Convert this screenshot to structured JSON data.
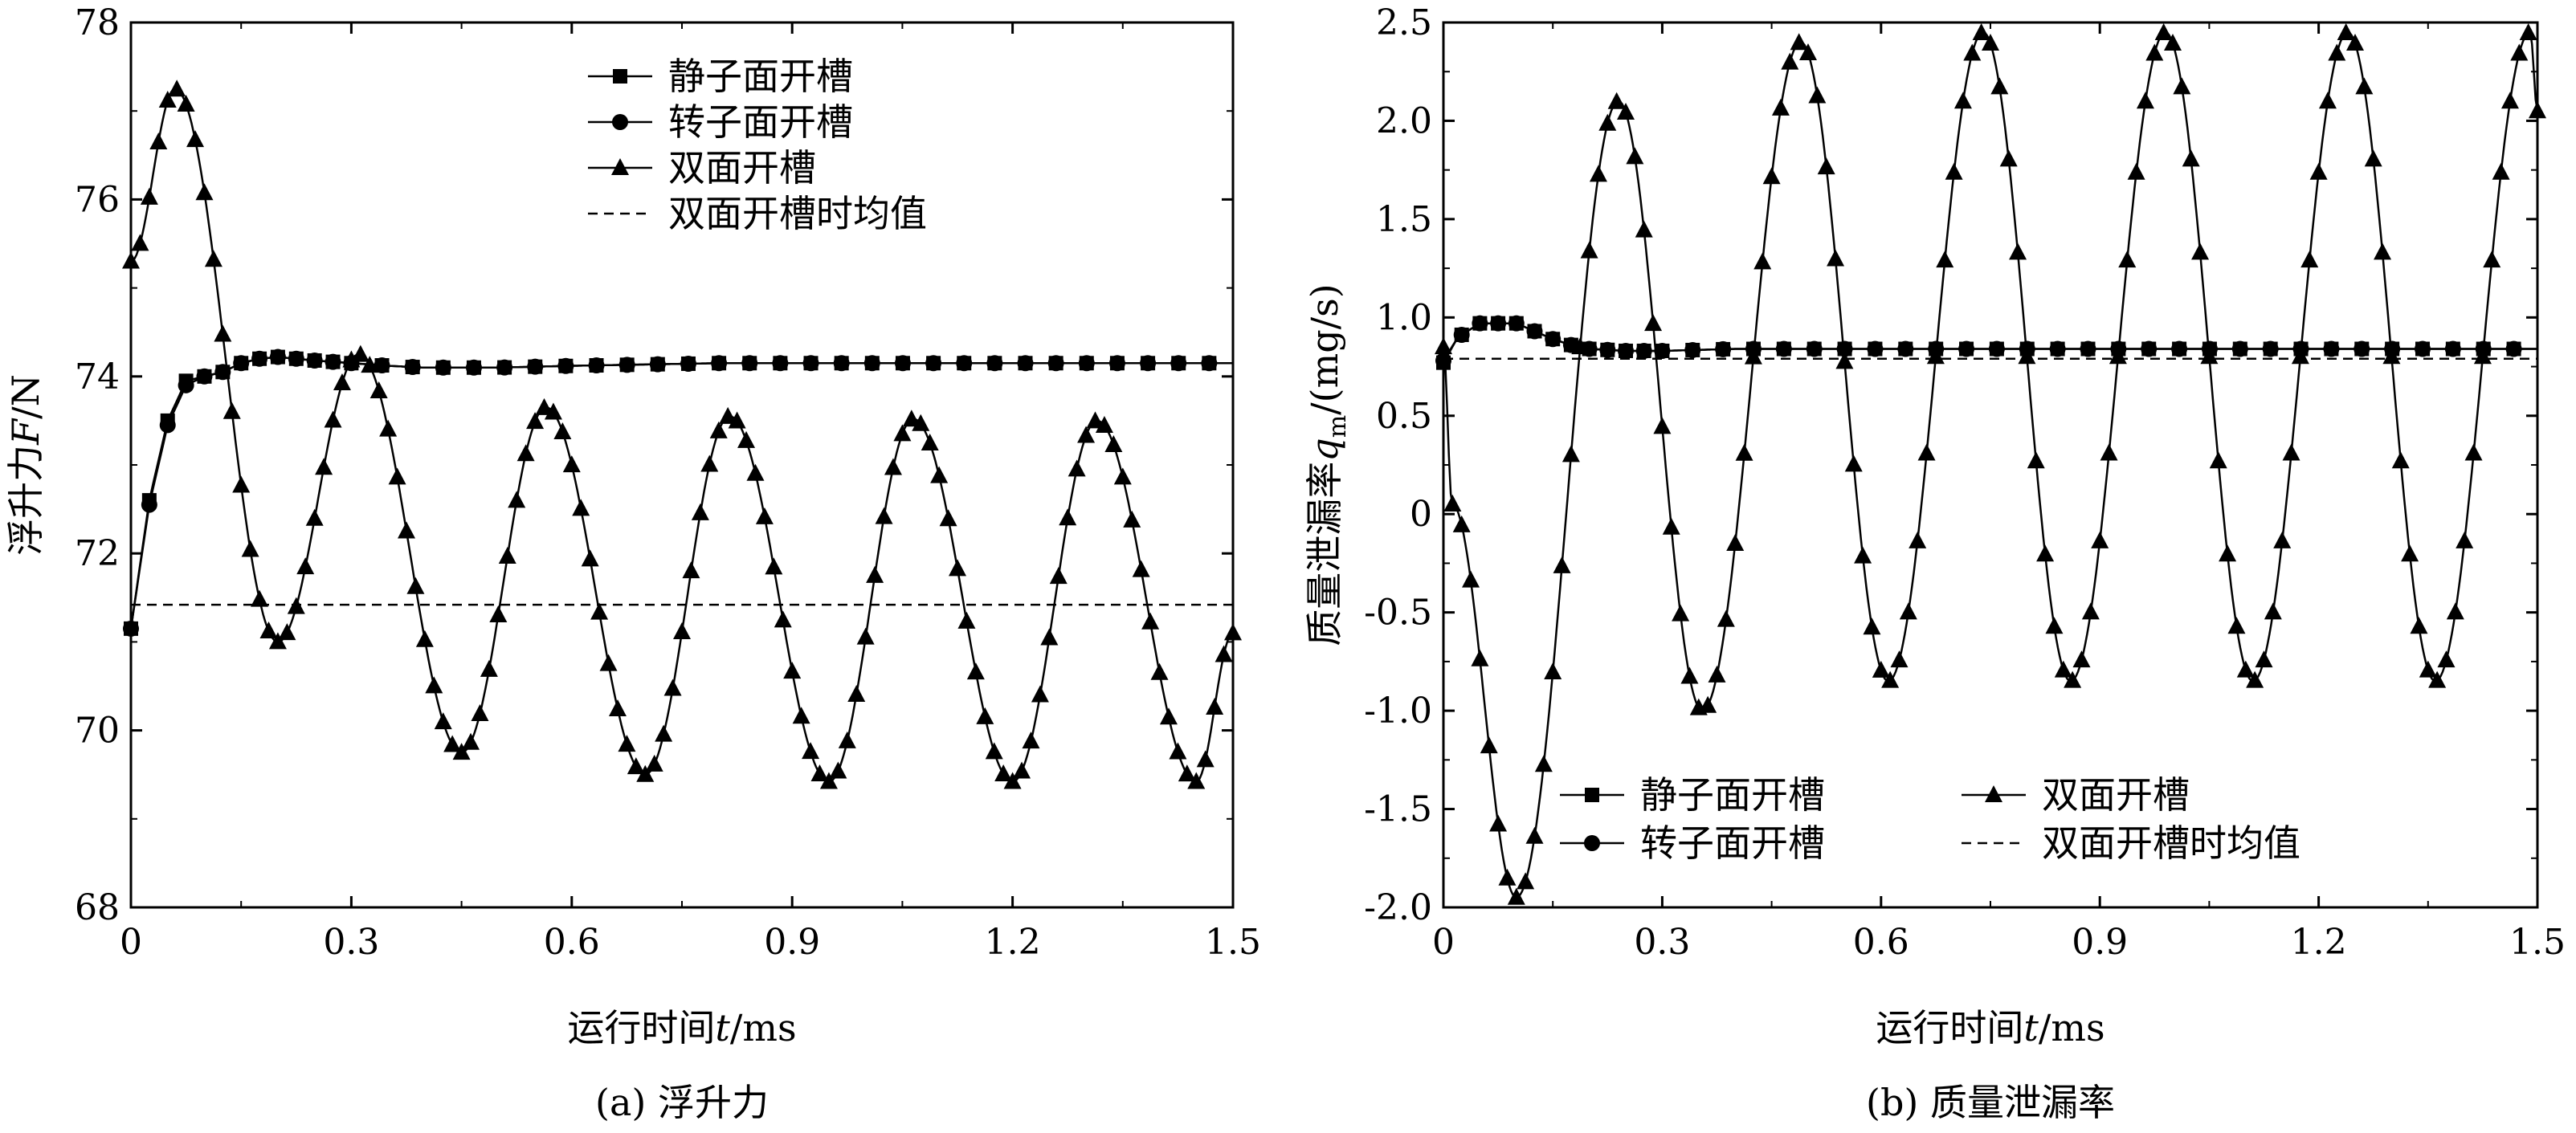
{
  "chart_data": [
    {
      "type": "line",
      "caption": "(a) 浮升力",
      "xlabel_prefix": "运行时间",
      "xlabel_var": "t",
      "xlabel_unit": "/ms",
      "ylabel_prefix": "浮升力",
      "ylabel_var": "F",
      "ylabel_unit": "/N",
      "xlim": [
        0,
        1.5
      ],
      "ylim": [
        68,
        78
      ],
      "xticks": [
        "0",
        "0.3",
        "0.6",
        "0.9",
        "1.2",
        "1.5"
      ],
      "yticks": [
        "68",
        "70",
        "72",
        "74",
        "76",
        "78"
      ],
      "legend_position": "top-right",
      "series": [
        {
          "name": "静子面开槽",
          "marker": "square",
          "x": [
            0,
            0.025,
            0.05,
            0.075,
            0.1,
            0.125,
            0.15,
            0.175,
            0.2,
            0.225,
            0.25,
            0.3,
            0.35,
            0.4,
            0.5,
            0.6,
            0.8,
            1.0,
            1.2,
            1.5
          ],
          "y": [
            71.15,
            72.6,
            73.5,
            73.95,
            74.0,
            74.05,
            74.15,
            74.2,
            74.22,
            74.2,
            74.18,
            74.15,
            74.12,
            74.1,
            74.1,
            74.12,
            74.15,
            74.15,
            74.15,
            74.15
          ]
        },
        {
          "name": "转子面开槽",
          "marker": "circle",
          "x": [
            0,
            0.025,
            0.05,
            0.075,
            0.1,
            0.125,
            0.15,
            0.175,
            0.2,
            0.225,
            0.25,
            0.3,
            0.35,
            0.4,
            0.5,
            0.6,
            0.8,
            1.0,
            1.2,
            1.5
          ],
          "y": [
            71.15,
            72.55,
            73.45,
            73.9,
            74.0,
            74.05,
            74.15,
            74.2,
            74.22,
            74.2,
            74.18,
            74.15,
            74.12,
            74.1,
            74.1,
            74.12,
            74.15,
            74.15,
            74.15,
            74.15
          ]
        },
        {
          "name": "双面开槽",
          "marker": "triangle",
          "x": [
            0,
            0.06,
            0.2,
            0.31,
            0.45,
            0.565,
            0.7,
            0.815,
            0.95,
            1.065,
            1.2,
            1.315,
            1.45,
            1.5
          ],
          "y": [
            75.3,
            77.25,
            71.0,
            74.25,
            69.75,
            73.65,
            69.5,
            73.55,
            69.42,
            73.52,
            69.42,
            73.5,
            69.42,
            71.1
          ]
        },
        {
          "name": "双面开槽时均值",
          "marker": "none",
          "dashed": true,
          "x": [
            0,
            1.5
          ],
          "y": [
            71.42,
            71.42
          ]
        }
      ]
    },
    {
      "type": "line",
      "caption": "(b) 质量泄漏率",
      "xlabel_prefix": "运行时间",
      "xlabel_var": "t",
      "xlabel_unit": "/ms",
      "ylabel_prefix": "质量泄漏率",
      "ylabel_var": "q",
      "ylabel_sub": "m",
      "ylabel_unit": "/(mg/s)",
      "xlim": [
        0,
        1.5
      ],
      "ylim": [
        -2.0,
        2.5
      ],
      "xticks": [
        "0",
        "0.3",
        "0.6",
        "0.9",
        "1.2",
        "1.5"
      ],
      "yticks": [
        "-2.0",
        "-1.5",
        "-1.0",
        "-0.5",
        "0",
        "0.5",
        "1.0",
        "1.5",
        "2.0",
        "2.5"
      ],
      "legend_position": "bottom-right",
      "series": [
        {
          "name": "静子面开槽",
          "marker": "square",
          "x": [
            0,
            0.02,
            0.05,
            0.075,
            0.1,
            0.125,
            0.15,
            0.175,
            0.2,
            0.25,
            0.3,
            0.4,
            0.6,
            0.8,
            1.0,
            1.2,
            1.5
          ],
          "y": [
            0.77,
            0.9,
            0.97,
            0.97,
            0.97,
            0.93,
            0.89,
            0.86,
            0.84,
            0.83,
            0.83,
            0.84,
            0.84,
            0.84,
            0.84,
            0.84,
            0.84
          ]
        },
        {
          "name": "转子面开槽",
          "marker": "circle",
          "x": [
            0,
            0.02,
            0.05,
            0.075,
            0.1,
            0.125,
            0.15,
            0.175,
            0.2,
            0.25,
            0.3,
            0.4,
            0.6,
            0.8,
            1.0,
            1.2,
            1.5
          ],
          "y": [
            0.78,
            0.9,
            0.97,
            0.97,
            0.97,
            0.93,
            0.89,
            0.86,
            0.84,
            0.83,
            0.83,
            0.84,
            0.84,
            0.84,
            0.84,
            0.84,
            0.84
          ]
        },
        {
          "name": "双面开槽",
          "marker": "triangle",
          "x": [
            0,
            0.012,
            0.1,
            0.24,
            0.355,
            0.49,
            0.61,
            0.74,
            0.86,
            0.99,
            1.11,
            1.24,
            1.36,
            1.49,
            1.5
          ],
          "y": [
            0.85,
            0.05,
            -1.95,
            2.1,
            -1.0,
            2.4,
            -0.85,
            2.45,
            -0.85,
            2.45,
            -0.85,
            2.45,
            -0.85,
            2.45,
            2.05
          ]
        },
        {
          "name": "双面开槽时均值",
          "marker": "none",
          "dashed": true,
          "x": [
            0,
            1.5
          ],
          "y": [
            0.79,
            0.79
          ]
        }
      ]
    }
  ]
}
